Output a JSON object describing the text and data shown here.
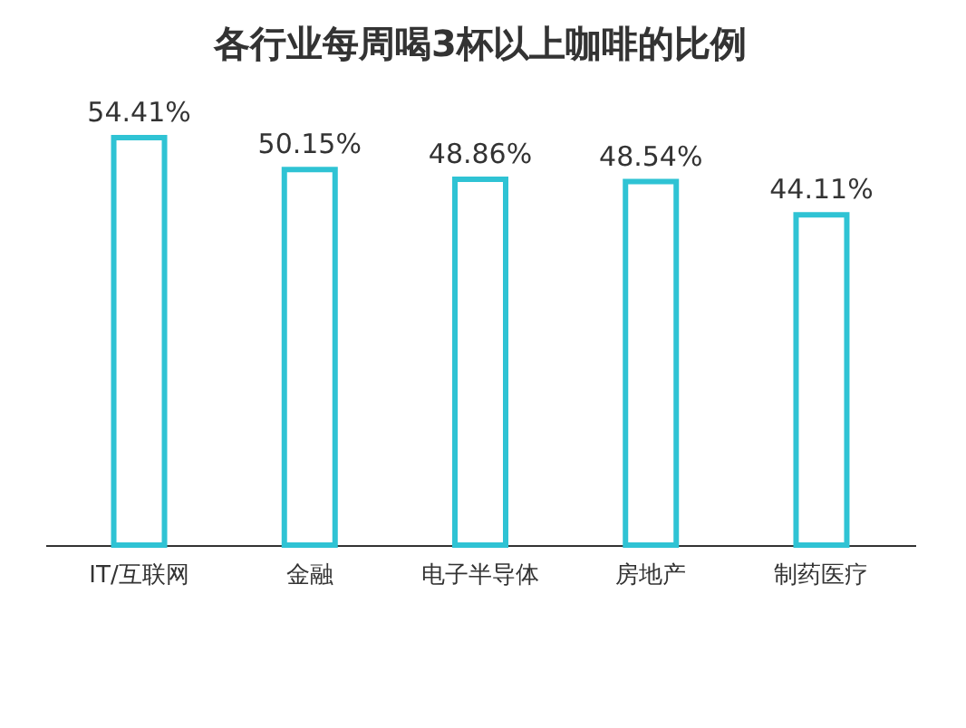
{
  "chart_data": {
    "type": "bar",
    "title": "各行业每周喝3杯以上咖啡的比例",
    "categories": [
      "IT/互联网",
      "金融",
      "电子半导体",
      "房地产",
      "制药医疗"
    ],
    "values": [
      54.41,
      50.15,
      48.86,
      48.54,
      44.11
    ],
    "value_labels": [
      "54.41%",
      "50.15%",
      "48.86%",
      "48.54%",
      "44.11%"
    ],
    "color": "#2fc3d4",
    "grid": false
  }
}
